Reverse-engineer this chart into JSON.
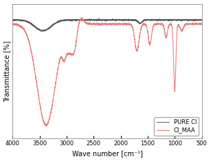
{
  "xlabel": "Wave number [cm⁻¹]",
  "ylabel": "Transmittance [%]",
  "xlim": [
    4000,
    500
  ],
  "pure_ci_color": "#555555",
  "ci_maa_color": "#e87878",
  "background_color": "#ffffff",
  "legend_labels": [
    "PURE CI",
    "CI_MAA"
  ],
  "xticks": [
    4000,
    3500,
    3000,
    2500,
    2000,
    1500,
    1000,
    500
  ]
}
